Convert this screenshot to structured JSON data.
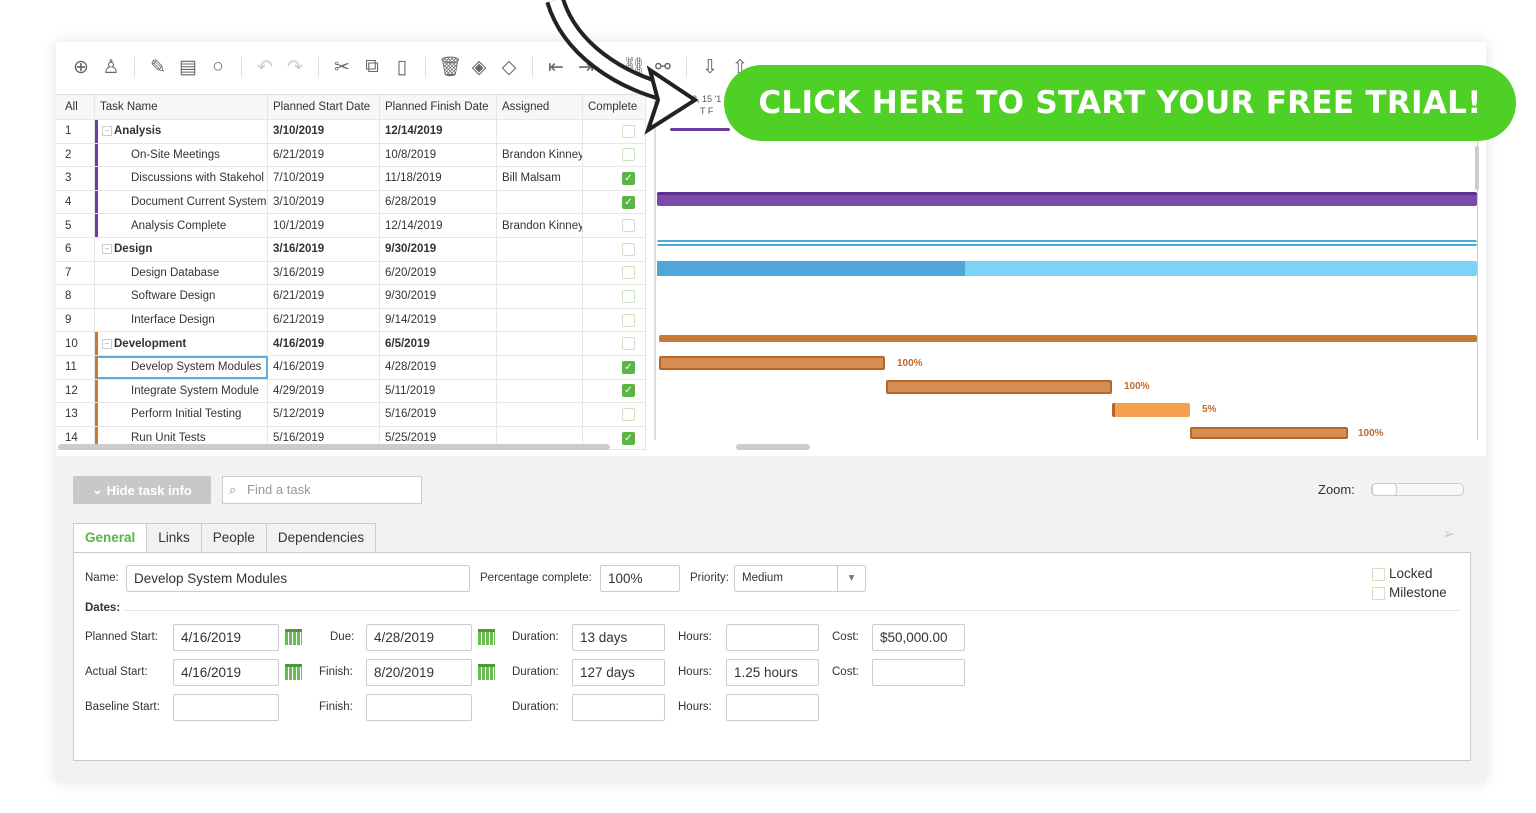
{
  "toolbar": {
    "icons": [
      "add-icon",
      "user-icon",
      "attach-icon",
      "note-icon",
      "comment-icon",
      "undo-icon",
      "redo-icon",
      "cut-icon",
      "copy-icon",
      "paste-icon",
      "delete-icon",
      "fill-icon",
      "milestone-icon",
      "outdent-icon",
      "indent-icon",
      "link-icon",
      "unlink-icon",
      "import-icon",
      "export-icon"
    ]
  },
  "grid": {
    "headers": [
      "All",
      "Task Name",
      "Planned Start Date",
      "Planned Finish Date",
      "Assigned",
      "Complete"
    ],
    "rows": [
      {
        "n": "1",
        "name": "Analysis",
        "start": "3/10/2019",
        "finish": "12/14/2019",
        "assigned": "",
        "done": false,
        "group": true,
        "color": "#6b3fa0"
      },
      {
        "n": "2",
        "name": "On-Site Meetings",
        "start": "6/21/2019",
        "finish": "10/8/2019",
        "assigned": "Brandon Kinney",
        "done": false,
        "color": "#6b3fa0"
      },
      {
        "n": "3",
        "name": "Discussions with Stakehol",
        "start": "7/10/2019",
        "finish": "11/18/2019",
        "assigned": "Bill Malsam",
        "done": true,
        "color": "#6b3fa0"
      },
      {
        "n": "4",
        "name": "Document Current System",
        "start": "3/10/2019",
        "finish": "6/28/2019",
        "assigned": "",
        "done": true,
        "color": "#6b3fa0"
      },
      {
        "n": "5",
        "name": "Analysis Complete",
        "start": "10/1/2019",
        "finish": "12/14/2019",
        "assigned": "Brandon Kinney",
        "done": false,
        "color": "#6b3fa0"
      },
      {
        "n": "6",
        "name": "Design",
        "start": "3/16/2019",
        "finish": "9/30/2019",
        "assigned": "",
        "done": false,
        "group": true,
        "color": ""
      },
      {
        "n": "7",
        "name": "Design Database",
        "start": "3/16/2019",
        "finish": "6/20/2019",
        "assigned": "",
        "done": false,
        "color": ""
      },
      {
        "n": "8",
        "name": "Software Design",
        "start": "6/21/2019",
        "finish": "9/30/2019",
        "assigned": "",
        "done": false,
        "color": ""
      },
      {
        "n": "9",
        "name": "Interface Design",
        "start": "6/21/2019",
        "finish": "9/14/2019",
        "assigned": "",
        "done": false,
        "color": ""
      },
      {
        "n": "10",
        "name": "Development",
        "start": "4/16/2019",
        "finish": "6/5/2019",
        "assigned": "",
        "done": false,
        "group": true,
        "color": "#c77a35"
      },
      {
        "n": "11",
        "name": "Develop System Modules",
        "start": "4/16/2019",
        "finish": "4/28/2019",
        "assigned": "",
        "done": true,
        "color": "#c77a35",
        "selected": true
      },
      {
        "n": "12",
        "name": "Integrate System Module",
        "start": "4/29/2019",
        "finish": "5/11/2019",
        "assigned": "",
        "done": true,
        "color": "#c77a35"
      },
      {
        "n": "13",
        "name": "Perform Initial Testing",
        "start": "5/12/2019",
        "finish": "5/16/2019",
        "assigned": "",
        "done": false,
        "color": "#c77a35"
      },
      {
        "n": "14",
        "name": "Run Unit Tests",
        "start": "5/16/2019",
        "finish": "5/25/2019",
        "assigned": "",
        "done": true,
        "color": "#c77a35"
      }
    ]
  },
  "gantt": {
    "header": "2, 15 '1",
    "day_letters": "T  F",
    "labels": [
      "100%",
      "100%",
      "5%",
      "100%"
    ]
  },
  "bottom": {
    "hide_label": "Hide task info",
    "find_placeholder": "Find a task",
    "zoom_label": "Zoom:",
    "tabs": [
      "General",
      "Links",
      "People",
      "Dependencies"
    ],
    "name_label": "Name:",
    "name": "Develop System Modules",
    "pct_label": "Percentage complete:",
    "pct": "100%",
    "priority_label": "Priority:",
    "priority": "Medium",
    "locked": "Locked",
    "milestone": "Milestone",
    "dates_label": "Dates:",
    "planned_start_label": "Planned Start:",
    "planned_start": "4/16/2019",
    "due_label": "Due:",
    "due": "4/28/2019",
    "duration_label": "Duration:",
    "duration1": "13 days",
    "hours_label": "Hours:",
    "cost_label": "Cost:",
    "cost1": "$50,000.00",
    "actual_start_label": "Actual Start:",
    "actual_start": "4/16/2019",
    "finish_label": "Finish:",
    "finish": "8/20/2019",
    "duration2": "127 days",
    "hours2": "1.25 hours",
    "baseline_start_label": "Baseline Start:"
  },
  "cta": "CLICK HERE TO START YOUR FREE TRIAL!",
  "colors": {
    "accent": "#5bb544",
    "cta": "#4fd024",
    "purple": "#6b3fa0",
    "blue": "#4ea7d8",
    "orange": "#c77a35"
  }
}
